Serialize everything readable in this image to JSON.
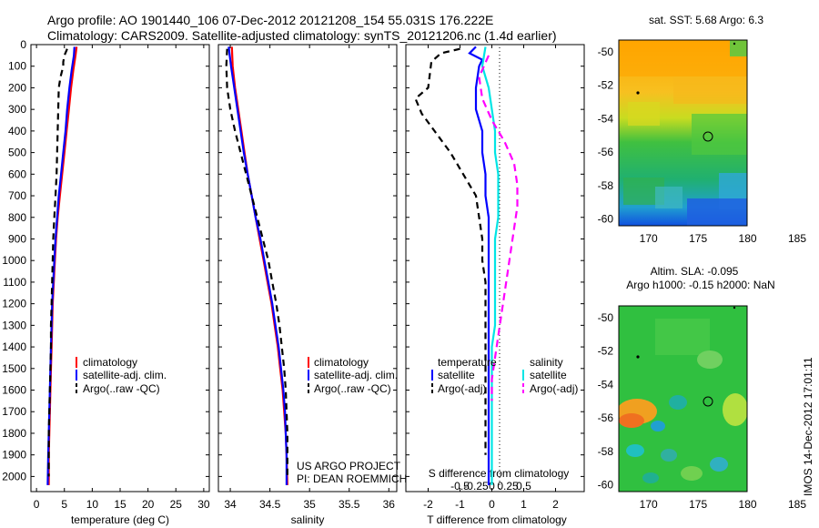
{
  "header": {
    "line1": "Argo profile: AO 1901440_106 07-Dec-2012 20121208_154 55.031S 176.222E",
    "line2": "Climatology: CARS2009. Satellite-adjusted climatology: synTS_20121206.nc (1.4d earlier)"
  },
  "credit": {
    "line1": "US ARGO PROJECT",
    "line2": "PI: DEAN ROEMMICH"
  },
  "stamp": "IMOS 14-Dec-2012 17:01:11",
  "colors": {
    "climatology": "#ff0000",
    "satellite": "#0000ff",
    "argo": "#000000",
    "sal_satellite": "#00e5e5",
    "sal_argo": "#ff00ff"
  },
  "chart_data": [
    {
      "id": "temperature",
      "type": "line",
      "xlabel": "temperature (deg C)",
      "ylim": [
        2070,
        0
      ],
      "xlim": [
        -1,
        31
      ],
      "xticks": [
        0,
        5,
        10,
        15,
        20,
        25,
        30
      ],
      "yticks": [
        0,
        100,
        200,
        300,
        400,
        500,
        600,
        700,
        800,
        900,
        1000,
        1100,
        1200,
        1300,
        1400,
        1500,
        1600,
        1700,
        1800,
        1900,
        2000
      ],
      "legend": [
        "climatology",
        "satellite-adj. clim.",
        "Argo(..raw -QC)"
      ],
      "series": [
        {
          "name": "climatology",
          "color": "#ff0000",
          "dash": "",
          "points": [
            [
              7.2,
              10
            ],
            [
              7.0,
              50
            ],
            [
              6.6,
              120
            ],
            [
              6.2,
              200
            ],
            [
              5.8,
              300
            ],
            [
              5.4,
              400
            ],
            [
              5.0,
              500
            ],
            [
              4.6,
              600
            ],
            [
              4.2,
              700
            ],
            [
              3.8,
              800
            ],
            [
              3.5,
              900
            ],
            [
              3.3,
              1000
            ],
            [
              3.1,
              1100
            ],
            [
              2.9,
              1200
            ],
            [
              2.8,
              1300
            ],
            [
              2.7,
              1400
            ],
            [
              2.6,
              1500
            ],
            [
              2.5,
              1600
            ],
            [
              2.4,
              1700
            ],
            [
              2.3,
              1800
            ],
            [
              2.2,
              1900
            ],
            [
              2.2,
              2040
            ]
          ]
        },
        {
          "name": "satellite-adj. clim.",
          "color": "#0000ff",
          "dash": "",
          "points": [
            [
              6.8,
              10
            ],
            [
              6.7,
              50
            ],
            [
              6.3,
              120
            ],
            [
              5.9,
              200
            ],
            [
              5.5,
              300
            ],
            [
              5.2,
              400
            ],
            [
              4.8,
              500
            ],
            [
              4.4,
              600
            ],
            [
              4.0,
              700
            ],
            [
              3.7,
              800
            ],
            [
              3.4,
              900
            ],
            [
              3.2,
              1000
            ],
            [
              3.0,
              1100
            ],
            [
              2.8,
              1200
            ],
            [
              2.7,
              1300
            ],
            [
              2.6,
              1400
            ],
            [
              2.5,
              1500
            ],
            [
              2.4,
              1600
            ],
            [
              2.3,
              1700
            ],
            [
              2.2,
              1800
            ],
            [
              2.1,
              1900
            ],
            [
              2.0,
              2040
            ]
          ]
        },
        {
          "name": "Argo(..raw -QC)",
          "color": "#000000",
          "dash": "7,5",
          "points": [
            [
              5.5,
              20
            ],
            [
              5.0,
              50
            ],
            [
              4.8,
              80
            ],
            [
              4.8,
              100
            ],
            [
              4.3,
              150
            ],
            [
              4.0,
              200
            ],
            [
              3.9,
              300
            ],
            [
              3.8,
              400
            ],
            [
              3.7,
              500
            ],
            [
              3.6,
              600
            ],
            [
              3.4,
              700
            ],
            [
              3.2,
              800
            ],
            [
              3.0,
              900
            ],
            [
              2.9,
              1000
            ],
            [
              2.8,
              1100
            ],
            [
              2.7,
              1200
            ],
            [
              2.6,
              1300
            ],
            [
              2.6,
              1400
            ],
            [
              2.5,
              1500
            ],
            [
              2.4,
              1600
            ],
            [
              2.3,
              1700
            ],
            [
              2.2,
              1800
            ],
            [
              2.2,
              1900
            ],
            [
              2.2,
              2000
            ]
          ]
        }
      ]
    },
    {
      "id": "salinity",
      "type": "line",
      "xlabel": "salinity",
      "ylim": [
        2070,
        0
      ],
      "xlim": [
        33.85,
        36.1
      ],
      "xticks": [
        34,
        34.5,
        35,
        35.5,
        36
      ],
      "legend": [
        "climatology",
        "satellite-adj. clim.",
        "Argo(..raw -QC)"
      ],
      "series": [
        {
          "name": "climatology",
          "color": "#ff0000",
          "dash": "",
          "points": [
            [
              34.02,
              10
            ],
            [
              34.03,
              100
            ],
            [
              34.06,
              200
            ],
            [
              34.1,
              300
            ],
            [
              34.14,
              400
            ],
            [
              34.18,
              500
            ],
            [
              34.22,
              600
            ],
            [
              34.27,
              700
            ],
            [
              34.32,
              800
            ],
            [
              34.37,
              900
            ],
            [
              34.42,
              1000
            ],
            [
              34.47,
              1100
            ],
            [
              34.52,
              1200
            ],
            [
              34.56,
              1300
            ],
            [
              34.6,
              1400
            ],
            [
              34.63,
              1500
            ],
            [
              34.66,
              1600
            ],
            [
              34.68,
              1700
            ],
            [
              34.7,
              1800
            ],
            [
              34.71,
              1900
            ],
            [
              34.72,
              2040
            ]
          ]
        },
        {
          "name": "satellite-adj. clim.",
          "color": "#0000ff",
          "dash": "",
          "points": [
            [
              33.98,
              10
            ],
            [
              34.01,
              100
            ],
            [
              34.05,
              200
            ],
            [
              34.09,
              300
            ],
            [
              34.13,
              400
            ],
            [
              34.17,
              500
            ],
            [
              34.22,
              600
            ],
            [
              34.27,
              700
            ],
            [
              34.32,
              800
            ],
            [
              34.38,
              900
            ],
            [
              34.43,
              1000
            ],
            [
              34.48,
              1100
            ],
            [
              34.53,
              1200
            ],
            [
              34.57,
              1300
            ],
            [
              34.61,
              1400
            ],
            [
              34.64,
              1500
            ],
            [
              34.67,
              1600
            ],
            [
              34.69,
              1700
            ],
            [
              34.7,
              1800
            ],
            [
              34.71,
              1900
            ],
            [
              34.71,
              2040
            ]
          ]
        },
        {
          "name": "Argo(..raw -QC)",
          "color": "#000000",
          "dash": "7,5",
          "points": [
            [
              33.96,
              20
            ],
            [
              33.95,
              100
            ],
            [
              33.96,
              200
            ],
            [
              34.0,
              300
            ],
            [
              34.06,
              400
            ],
            [
              34.13,
              500
            ],
            [
              34.2,
              600
            ],
            [
              34.27,
              700
            ],
            [
              34.34,
              800
            ],
            [
              34.41,
              900
            ],
            [
              34.48,
              1000
            ],
            [
              34.53,
              1100
            ],
            [
              34.58,
              1200
            ],
            [
              34.62,
              1300
            ],
            [
              34.65,
              1400
            ],
            [
              34.68,
              1500
            ],
            [
              34.7,
              1600
            ],
            [
              34.71,
              1700
            ],
            [
              34.72,
              1800
            ],
            [
              34.72,
              1900
            ],
            [
              34.72,
              2000
            ]
          ]
        }
      ]
    },
    {
      "id": "difference",
      "type": "line",
      "xlabel": "T difference from climatology",
      "top_label": "S difference from climatology",
      "ylim": [
        2070,
        0
      ],
      "xlim": [
        -2.7,
        2.9
      ],
      "xticks": [
        -2,
        -1,
        0,
        1,
        2
      ],
      "s_ticks": [
        "-0.5",
        "-0.25",
        "0",
        "0.25",
        "0.5"
      ],
      "legend_headers": [
        "temperature",
        "salinity"
      ],
      "legend": [
        "satellite",
        "Argo(-adj)",
        "satellite",
        "Argo(-adj)"
      ],
      "series": [
        {
          "name": "satellite",
          "quantity": "temperature",
          "color": "#0000ff",
          "dash": "",
          "points": [
            [
              -0.5,
              10
            ],
            [
              -0.7,
              40
            ],
            [
              -0.3,
              70
            ],
            [
              -0.4,
              100
            ],
            [
              -0.5,
              200
            ],
            [
              -0.5,
              300
            ],
            [
              -0.3,
              400
            ],
            [
              -0.3,
              500
            ],
            [
              -0.2,
              600
            ],
            [
              -0.2,
              700
            ],
            [
              -0.1,
              800
            ],
            [
              -0.1,
              900
            ],
            [
              -0.1,
              1000
            ],
            [
              -0.1,
              1100
            ],
            [
              -0.1,
              1200
            ],
            [
              -0.1,
              1300
            ],
            [
              -0.1,
              1400
            ],
            [
              -0.1,
              1500
            ],
            [
              -0.1,
              1600
            ],
            [
              -0.1,
              1700
            ],
            [
              -0.1,
              1800
            ],
            [
              -0.1,
              1900
            ],
            [
              -0.1,
              2040
            ]
          ]
        },
        {
          "name": "Argo(-adj)",
          "quantity": "temperature",
          "color": "#000000",
          "dash": "7,5",
          "points": [
            [
              -1.0,
              20
            ],
            [
              -1.6,
              40
            ],
            [
              -1.9,
              80
            ],
            [
              -2.0,
              200
            ],
            [
              -2.4,
              250
            ],
            [
              -2.2,
              320
            ],
            [
              -1.8,
              400
            ],
            [
              -1.3,
              500
            ],
            [
              -0.9,
              600
            ],
            [
              -0.5,
              700
            ],
            [
              -0.4,
              800
            ],
            [
              -0.3,
              900
            ],
            [
              -0.3,
              1000
            ],
            [
              -0.2,
              1100
            ],
            [
              -0.2,
              1200
            ],
            [
              -0.2,
              1300
            ],
            [
              -0.2,
              1400
            ],
            [
              -0.2,
              1500
            ],
            [
              -0.2,
              1600
            ],
            [
              -0.2,
              1700
            ],
            [
              -0.2,
              1800
            ],
            [
              -0.2,
              1900
            ]
          ]
        },
        {
          "name": "satellite",
          "quantity": "salinity",
          "color": "#00e5e5",
          "dash": "",
          "points": [
            [
              -0.2,
              10
            ],
            [
              -0.3,
              100
            ],
            [
              -0.1,
              200
            ],
            [
              0.0,
              300
            ],
            [
              0.1,
              400
            ],
            [
              0.1,
              500
            ],
            [
              0.2,
              600
            ],
            [
              0.2,
              700
            ],
            [
              0.2,
              800
            ],
            [
              0.1,
              900
            ],
            [
              0.1,
              1000
            ],
            [
              0.1,
              1100
            ],
            [
              0.1,
              1200
            ],
            [
              0.1,
              1300
            ],
            [
              0.0,
              1400
            ],
            [
              0.0,
              1500
            ],
            [
              0.0,
              1600
            ],
            [
              0.0,
              1700
            ],
            [
              0.0,
              1800
            ],
            [
              0.0,
              1900
            ],
            [
              0.0,
              2040
            ]
          ]
        },
        {
          "name": "Argo(-adj)",
          "quantity": "salinity",
          "color": "#ff00ff",
          "dash": "8,5",
          "points": [
            [
              -0.1,
              50
            ],
            [
              -0.4,
              150
            ],
            [
              -0.3,
              250
            ],
            [
              0.0,
              350
            ],
            [
              0.4,
              450
            ],
            [
              0.7,
              550
            ],
            [
              0.8,
              650
            ],
            [
              0.8,
              750
            ],
            [
              0.7,
              850
            ],
            [
              0.6,
              950
            ],
            [
              0.5,
              1050
            ],
            [
              0.4,
              1150
            ],
            [
              0.3,
              1250
            ],
            [
              0.2,
              1350
            ],
            [
              0.1,
              1450
            ],
            [
              0.0,
              1550
            ],
            [
              0.0,
              1650
            ]
          ]
        }
      ]
    },
    {
      "id": "sst-map",
      "type": "heatmap",
      "title": "sat. SST: 5.68 Argo: 6.3",
      "xlim": [
        167,
        185
      ],
      "ylim": [
        -60.4,
        -49.3
      ],
      "xticks": [
        170,
        175,
        180,
        185
      ],
      "yticks": [
        -50,
        -52,
        -54,
        -56,
        -58,
        -60
      ],
      "argo_position": [
        176.222,
        -55.031
      ]
    },
    {
      "id": "sla-map",
      "type": "heatmap",
      "title_line1": "Altim. SLA: -0.095",
      "title_line2": "Argo h1000: -0.15 h2000: NaN",
      "xlim": [
        167,
        185
      ],
      "ylim": [
        -60.4,
        -49.3
      ],
      "xticks": [
        170,
        175,
        180,
        185
      ],
      "yticks": [
        -50,
        -52,
        -54,
        -56,
        -58,
        -60
      ],
      "argo_position": [
        176.222,
        -55.031
      ]
    }
  ]
}
